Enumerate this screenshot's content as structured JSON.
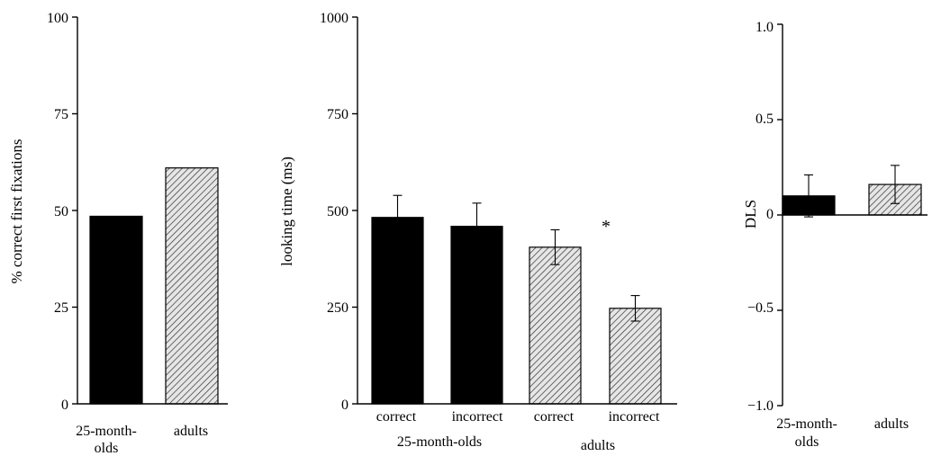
{
  "chart_data": [
    {
      "type": "bar",
      "ylabel": "% correct first fixations",
      "ylim": [
        0,
        100
      ],
      "yticks": [
        "0",
        "25",
        "50",
        "75",
        "100"
      ],
      "categories": [
        "25-month-olds",
        "adults"
      ],
      "category_label_lines": [
        [
          "25-month-",
          "olds"
        ],
        [
          "adults"
        ]
      ],
      "values": [
        48.5,
        61
      ],
      "bar_styles": [
        "solid-black",
        "hatched-gray"
      ]
    },
    {
      "type": "bar",
      "ylabel": "looking time (ms)",
      "ylim": [
        0,
        1000
      ],
      "yticks": [
        "0",
        "250",
        "500",
        "750",
        "1000"
      ],
      "categories": [
        "correct",
        "incorrect",
        "correct",
        "incorrect"
      ],
      "groups": [
        "25-month-olds",
        "adults"
      ],
      "values": [
        482,
        459,
        405,
        247
      ],
      "errors": [
        57,
        60,
        45,
        33
      ],
      "bar_styles": [
        "solid-black",
        "solid-black",
        "hatched-gray",
        "hatched-gray"
      ],
      "annotation": "*"
    },
    {
      "type": "bar",
      "ylabel": "DLS",
      "ylim": [
        -1.0,
        1.0
      ],
      "yticks": [
        "1.0",
        "0.5",
        "0",
        "−0.5",
        "−1.0"
      ],
      "categories": [
        "25-month-olds",
        "adults"
      ],
      "category_label_lines": [
        [
          "25-month-",
          "olds"
        ],
        [
          "adults"
        ]
      ],
      "values": [
        0.1,
        0.16
      ],
      "errors": [
        0.11,
        0.1
      ],
      "bar_styles": [
        "solid-black",
        "hatched-gray"
      ]
    }
  ],
  "colors": {
    "solid": "#000000",
    "hatch_bg": "#e6e6e6",
    "hatch_line": "#333333"
  }
}
